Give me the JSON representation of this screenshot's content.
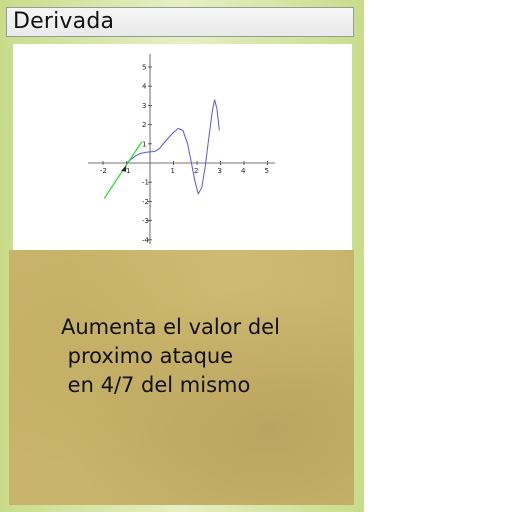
{
  "card": {
    "title": "Derivada",
    "effect_lines": [
      "Aumenta el valor del",
      " proximo ataque",
      " en 4/7 del mismo"
    ]
  },
  "graph": {
    "x_ticks": [
      "-2",
      "-1",
      "1",
      "2",
      "3",
      "4",
      "5"
    ],
    "y_ticks": [
      "5",
      "4",
      "3",
      "2",
      "1",
      "-1",
      "-2",
      "-3",
      "-4"
    ],
    "curve_color": "#5555ee",
    "tangent_color": "#22dd22"
  }
}
